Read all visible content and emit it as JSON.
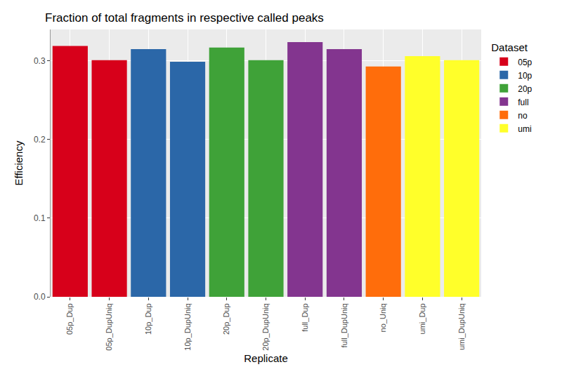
{
  "chart_data": {
    "type": "bar",
    "title": "Fraction of total fragments in respective called peaks",
    "x_label": "Replicate",
    "y_label": "Efficiency",
    "legend_title": "Dataset",
    "legend": "right",
    "grid": true,
    "categories": [
      "05p_Dup",
      "05p_DupUniq",
      "10p_Dup",
      "10p_DupUniq",
      "20p_Dup",
      "20p_DupUniq",
      "full_Dup",
      "full_DupUniq",
      "no_Uniq",
      "umi_Dup",
      "umi_DupUniq"
    ],
    "series": [
      {
        "name": "05p",
        "color": "#d7001a",
        "values": [
          0.319,
          0.301,
          null,
          null,
          null,
          null,
          null,
          null,
          null,
          null,
          null
        ]
      },
      {
        "name": "10p",
        "color": "#2b67a8",
        "values": [
          null,
          null,
          0.315,
          0.299,
          null,
          null,
          null,
          null,
          null,
          null,
          null
        ]
      },
      {
        "name": "20p",
        "color": "#3fa238",
        "values": [
          null,
          null,
          null,
          null,
          0.317,
          0.301,
          null,
          null,
          null,
          null,
          null
        ]
      },
      {
        "name": "full",
        "color": "#83358f",
        "values": [
          null,
          null,
          null,
          null,
          null,
          null,
          0.324,
          0.315,
          null,
          null,
          null
        ]
      },
      {
        "name": "no",
        "color": "#ff6d0b",
        "values": [
          null,
          null,
          null,
          null,
          null,
          null,
          null,
          null,
          0.293,
          null,
          null
        ]
      },
      {
        "name": "umi",
        "color": "#ffff2a",
        "values": [
          null,
          null,
          null,
          null,
          null,
          null,
          null,
          null,
          null,
          0.306,
          0.301
        ]
      }
    ],
    "ylim": [
      0,
      0.34
    ],
    "yticks": [
      {
        "value": 0,
        "label": "0.0"
      },
      0.1,
      0.2,
      0.3
    ]
  }
}
